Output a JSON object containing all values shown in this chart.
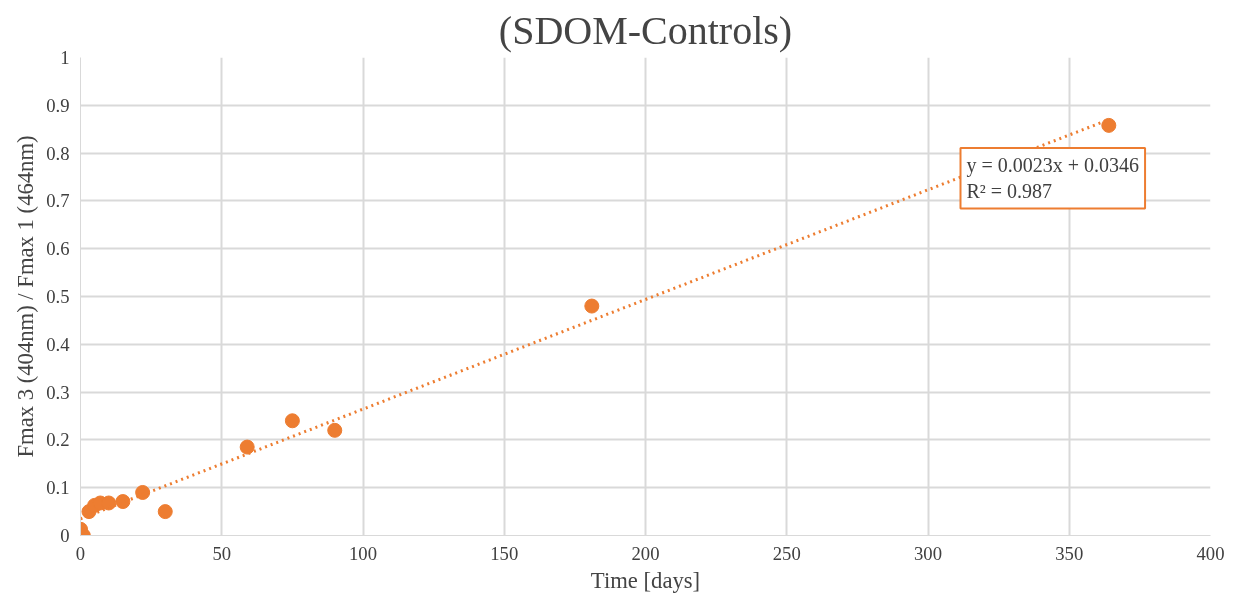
{
  "chart_data": {
    "type": "scatter",
    "title": "(SDOM-Controls)",
    "xlabel": "Time [days]",
    "ylabel": "Fmax 3 (404nm) / Fmax 1 (464nm)",
    "xlim": [
      0,
      400
    ],
    "xticks": [
      0,
      50,
      100,
      150,
      200,
      250,
      300,
      350,
      400
    ],
    "ylim": [
      0,
      1
    ],
    "yticks": [
      0,
      0.1,
      0.2,
      0.3,
      0.4,
      0.5,
      0.6,
      0.7,
      0.8,
      0.9,
      1
    ],
    "grid": true,
    "marker": "circle",
    "series": [
      {
        "color": "#ed7d31",
        "x": [
          0,
          1,
          3,
          5,
          7,
          10,
          15,
          22,
          30,
          59,
          75,
          90,
          181,
          364
        ],
        "values": [
          0.013,
          0,
          0.05,
          0.063,
          0.068,
          0.068,
          0.071,
          0.09,
          0.05,
          0.185,
          0.24,
          0.22,
          0.48,
          0.858
        ]
      },
      {
        "type": "line",
        "color": "#ed7d31",
        "line_style": "dotted",
        "marker": "none",
        "x": [
          0,
          364
        ],
        "values": [
          0.035,
          0.87
        ]
      }
    ],
    "annotations": [
      "y = 0.0023x + 0.0346\nR² = 0.987"
    ]
  }
}
